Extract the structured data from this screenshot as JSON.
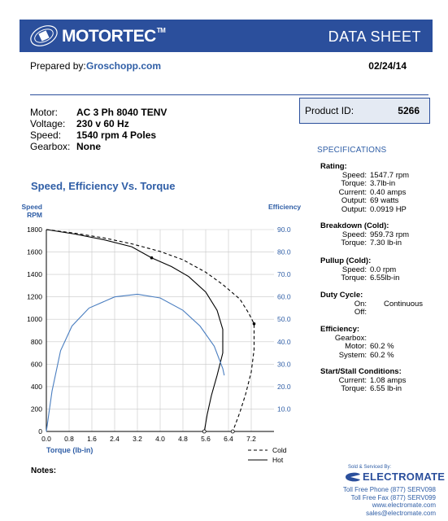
{
  "header": {
    "brand": "MOTORTEC",
    "trademark": "TM",
    "doc_title": "DATA SHEET"
  },
  "prepared": {
    "label": "Prepared by:",
    "name": "Groschopp.com",
    "date": "02/24/14"
  },
  "motor": {
    "rows": [
      {
        "label": "Motor:",
        "value": "AC 3 Ph  8040 TENV"
      },
      {
        "label": "Voltage:",
        "value": "230 v 60 Hz"
      },
      {
        "label": "Speed:",
        "value": "1540 rpm   4 Poles"
      },
      {
        "label": "Gearbox:",
        "value": "None"
      }
    ]
  },
  "product": {
    "label": "Product ID:",
    "id": "5266"
  },
  "specifications": {
    "title": "SPECIFICATIONS",
    "groups": [
      {
        "head": "Rating:",
        "rows": [
          {
            "label": "Speed:",
            "value": "1547.7 rpm"
          },
          {
            "label": "Torque:",
            "value": "3.7lb-in"
          },
          {
            "label": "Current:",
            "value": "0.40 amps"
          },
          {
            "label": "Output:",
            "value": "69 watts"
          },
          {
            "label": "Output:",
            "value": "0.0919 HP"
          }
        ]
      },
      {
        "head": "Breakdown (Cold):",
        "rows": [
          {
            "label": "Speed:",
            "value": "959.73 rpm"
          },
          {
            "label": "Torque:",
            "value": "7.30 lb-in"
          }
        ]
      },
      {
        "head": "Pullup (Cold):",
        "rows": [
          {
            "label": "Speed:",
            "value": "0.0 rpm"
          },
          {
            "label": "Torque:",
            "value": "6.55lb-in"
          }
        ]
      },
      {
        "head": "Duty Cycle:",
        "rows": [
          {
            "label": "On:",
            "value": "Continuous"
          },
          {
            "label": "Off:",
            "value": ""
          }
        ]
      },
      {
        "head": "Efficiency:",
        "rows": [
          {
            "label": "Gearbox:",
            "value": ""
          },
          {
            "label": "Motor:",
            "value": "60.2 %"
          },
          {
            "label": "System:",
            "value": "60.2 %"
          }
        ]
      },
      {
        "head": "Start/Stall Conditions:",
        "rows": [
          {
            "label": "Current:",
            "value": "1.08 amps"
          },
          {
            "label": "Torque:",
            "value": "6.55 lb-in"
          }
        ]
      }
    ]
  },
  "chart_title": "Speed, Efficiency Vs. Torque",
  "notes_label": "Notes:",
  "distributor": {
    "sold_by": "Sold & Serviced By:",
    "name": "ELECTROMATE",
    "lines": [
      "Toll Free Phone  (877) SERV098",
      "Toll Free Fax  (877) SERV099",
      "www.electromate.com",
      "sales@electromate.com"
    ]
  },
  "colors": {
    "brand_blue": "#2b4f9c",
    "accent_blue": "#2f5ea6",
    "efficiency_line": "#4a7ec0",
    "grid": "#c8c8c8"
  },
  "chart_data": {
    "type": "line",
    "xlabel": "Torque  (lb-in)",
    "ylabel_left": "Speed\nRPM",
    "ylabel_right": "Efficiency",
    "xlim": [
      0,
      8.0
    ],
    "ylim_left": [
      0,
      1800
    ],
    "ylim_right": [
      0,
      90
    ],
    "x_ticks": [
      "0.0",
      "0.8",
      "1.6",
      "2.4",
      "3.2",
      "4.0",
      "4.8",
      "5.6",
      "6.4",
      "7.2"
    ],
    "y_ticks_left": [
      "0",
      "200",
      "400",
      "600",
      "800",
      "1000",
      "1200",
      "1400",
      "1600",
      "1800"
    ],
    "y_ticks_right": [
      "10.0",
      "20.0",
      "30.0",
      "40.0",
      "50.0",
      "60.0",
      "70.0",
      "80.0",
      "90.0"
    ],
    "grid": true,
    "legend": "bottom-right",
    "series": [
      {
        "name": "Cold",
        "style": "dashed",
        "axis": "left",
        "points": [
          [
            0,
            1800
          ],
          [
            1.0,
            1767
          ],
          [
            2.0,
            1727
          ],
          [
            3.0,
            1673
          ],
          [
            4.0,
            1605
          ],
          [
            4.8,
            1531
          ],
          [
            5.6,
            1420
          ],
          [
            6.2,
            1310
          ],
          [
            6.8,
            1180
          ],
          [
            7.1,
            1060
          ],
          [
            7.3,
            960
          ],
          [
            7.3,
            730
          ],
          [
            7.2,
            530
          ],
          [
            7.0,
            330
          ],
          [
            6.8,
            170
          ],
          [
            6.55,
            0
          ]
        ]
      },
      {
        "name": "Hot",
        "style": "solid",
        "axis": "left",
        "points": [
          [
            0,
            1800
          ],
          [
            1.0,
            1760
          ],
          [
            2.0,
            1711
          ],
          [
            3.0,
            1647
          ],
          [
            3.7,
            1548
          ],
          [
            4.4,
            1470
          ],
          [
            5.0,
            1381
          ],
          [
            5.6,
            1243
          ],
          [
            6.0,
            1080
          ],
          [
            6.2,
            910
          ],
          [
            6.2,
            700
          ],
          [
            6.0,
            500
          ],
          [
            5.8,
            320
          ],
          [
            5.65,
            150
          ],
          [
            5.55,
            0
          ]
        ]
      },
      {
        "name": "Efficiency",
        "style": "solid",
        "axis": "right",
        "points": [
          [
            0,
            0
          ],
          [
            0.2,
            18
          ],
          [
            0.5,
            36
          ],
          [
            0.9,
            47
          ],
          [
            1.5,
            55
          ],
          [
            2.4,
            60
          ],
          [
            3.2,
            61.2
          ],
          [
            4.0,
            59.5
          ],
          [
            4.8,
            54
          ],
          [
            5.4,
            47
          ],
          [
            5.9,
            38
          ],
          [
            6.2,
            28
          ],
          [
            6.25,
            25
          ]
        ]
      }
    ],
    "markers": [
      {
        "series": "Hot",
        "x": 3.7,
        "y": 1548
      },
      {
        "series": "Cold",
        "x": 7.3,
        "y": 960
      }
    ]
  }
}
